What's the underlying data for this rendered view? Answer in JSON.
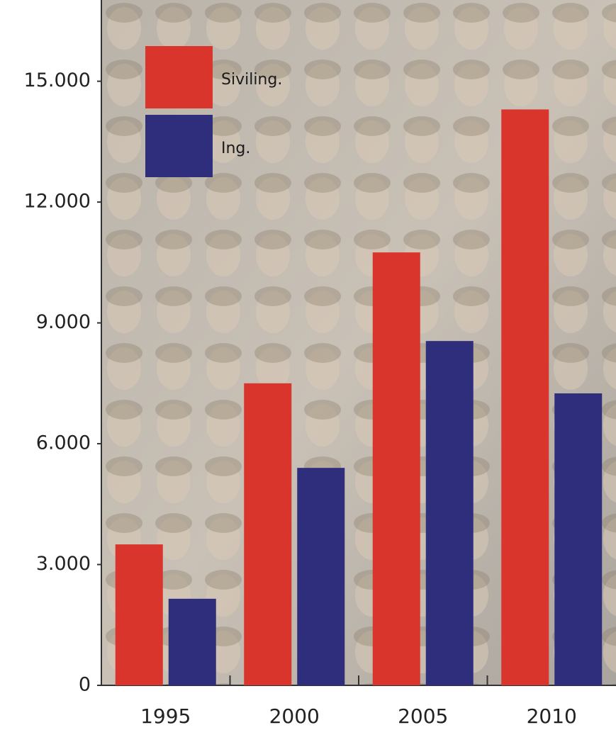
{
  "chart_data": {
    "type": "bar",
    "categories": [
      "1995",
      "2000",
      "2005",
      "2010"
    ],
    "series": [
      {
        "name": "Siviling.",
        "color": "#d9352c",
        "values": [
          3500,
          7500,
          10750,
          14300
        ]
      },
      {
        "name": "Ing.",
        "color": "#2f2e7c",
        "values": [
          2150,
          5400,
          8550,
          7250
        ]
      }
    ],
    "ylim": [
      0,
      17000
    ],
    "yticks": [
      0,
      {
        "value": 3000,
        "label": "3.000"
      },
      {
        "value": 6000,
        "label": "6.000"
      },
      {
        "value": 9000,
        "label": "9.000"
      },
      {
        "value": 12000,
        "label": "12.000"
      },
      {
        "value": 15000,
        "label": "15.000"
      }
    ]
  }
}
